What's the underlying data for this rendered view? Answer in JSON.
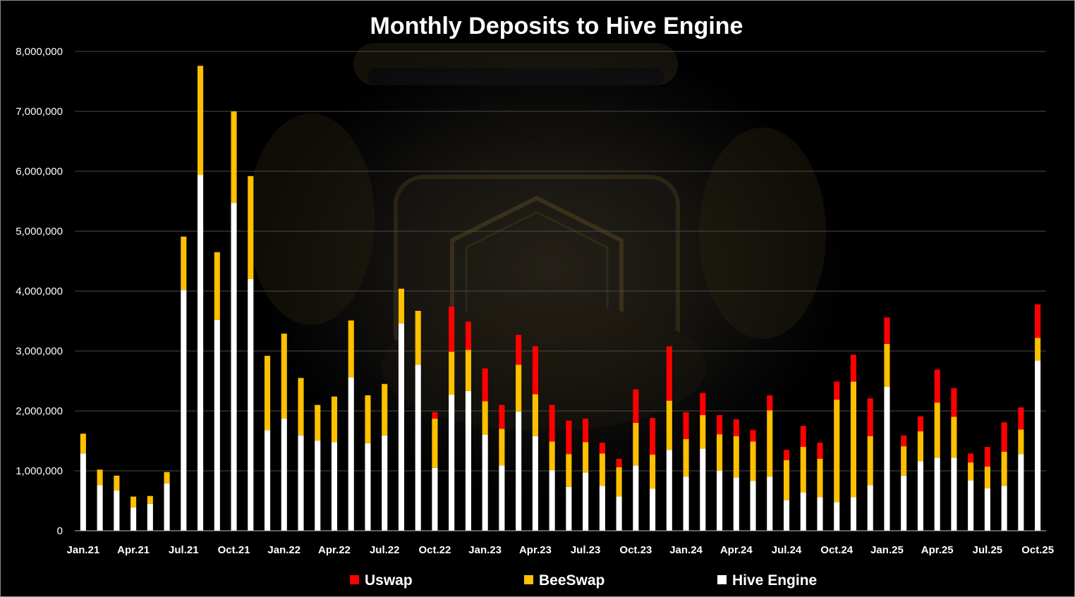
{
  "chart_data": {
    "type": "bar",
    "stacked": true,
    "title": "Monthly Deposits to Hive Engine",
    "xlabel": "",
    "ylabel": "",
    "ylim": [
      0,
      8000000
    ],
    "yticks": [
      0,
      1000000,
      2000000,
      3000000,
      4000000,
      5000000,
      6000000,
      7000000,
      8000000
    ],
    "ytick_labels": [
      "0",
      "1,000,000",
      "2,000,000",
      "3,000,000",
      "4,000,000",
      "5,000,000",
      "6,000,000",
      "7,000,000",
      "8,000,000"
    ],
    "grid": true,
    "legend_position": "bottom",
    "categories": [
      "Jan.21",
      "Feb.21",
      "Mar.21",
      "Apr.21",
      "May.21",
      "Jun.21",
      "Jul.21",
      "Aug.21",
      "Sep.21",
      "Oct.21",
      "Nov.21",
      "Dec.21",
      "Jan.22",
      "Feb.22",
      "Mar.22",
      "Apr.22",
      "May.22",
      "Jun.22",
      "Jul.22",
      "Aug.22",
      "Sep.22",
      "Oct.22",
      "Nov.22",
      "Dec.22",
      "Jan.23",
      "Feb.23",
      "Mar.23",
      "Apr.23",
      "May.23",
      "Jun.23",
      "Jul.23",
      "Aug.23",
      "Sep.23",
      "Oct.23",
      "Nov.23",
      "Dec.23",
      "Jan.24",
      "Feb.24",
      "Mar.24",
      "Apr.24",
      "May.24",
      "Jun.24",
      "Jul.24",
      "Aug.24",
      "Sep.24",
      "Oct.24",
      "Nov.24",
      "Dec.24",
      "Jan.25",
      "Feb.25",
      "Mar.25",
      "Apr.25",
      "May.25",
      "Jun.25",
      "Jul.25",
      "Aug.25",
      "Sep.25",
      "Oct.25"
    ],
    "tick_labels": [
      "Jan.21",
      "",
      "",
      "Apr.21",
      "",
      "",
      "Jul.21",
      "",
      "",
      "Oct.21",
      "",
      "",
      "Jan.22",
      "",
      "",
      "Apr.22",
      "",
      "",
      "Jul.22",
      "",
      "",
      "Oct.22",
      "",
      "",
      "Jan.23",
      "",
      "",
      "Apr.23",
      "",
      "",
      "Jul.23",
      "",
      "",
      "Oct.23",
      "",
      "",
      "Jan.24",
      "",
      "",
      "Apr.24",
      "",
      "",
      "Jul.24",
      "",
      "",
      "Oct.24",
      "",
      "",
      "Jan.25",
      "",
      "",
      "Apr.25",
      "",
      "",
      "Jul.25",
      "",
      "",
      "Oct.25"
    ],
    "series": [
      {
        "name": "Hive Engine",
        "color": "#ffffff",
        "values": [
          1290000,
          760000,
          670000,
          390000,
          450000,
          790000,
          4020000,
          5940000,
          3520000,
          5470000,
          4200000,
          1680000,
          1870000,
          1590000,
          1500000,
          1480000,
          2560000,
          1460000,
          1590000,
          3460000,
          2770000,
          1050000,
          2270000,
          2330000,
          1600000,
          1090000,
          1990000,
          1580000,
          1010000,
          730000,
          970000,
          750000,
          570000,
          1090000,
          700000,
          1350000,
          900000,
          1370000,
          1000000,
          890000,
          830000,
          900000,
          510000,
          640000,
          560000,
          480000,
          560000,
          760000,
          2400000,
          920000,
          1160000,
          1220000,
          1220000,
          840000,
          710000,
          750000,
          1280000,
          2840000
        ]
      },
      {
        "name": "BeeSwap",
        "color": "#ffc000",
        "values": [
          330000,
          260000,
          250000,
          180000,
          130000,
          190000,
          890000,
          1820000,
          1130000,
          1530000,
          1720000,
          1240000,
          1420000,
          960000,
          600000,
          760000,
          950000,
          800000,
          860000,
          580000,
          900000,
          820000,
          720000,
          690000,
          560000,
          610000,
          780000,
          700000,
          480000,
          550000,
          510000,
          540000,
          490000,
          710000,
          570000,
          820000,
          630000,
          560000,
          610000,
          690000,
          660000,
          1110000,
          670000,
          760000,
          640000,
          1710000,
          1930000,
          820000,
          720000,
          490000,
          500000,
          920000,
          680000,
          300000,
          360000,
          570000,
          410000,
          380000
        ]
      },
      {
        "name": "Uswap",
        "color": "#ff0000",
        "values": [
          0,
          0,
          0,
          0,
          0,
          0,
          0,
          0,
          0,
          0,
          0,
          0,
          0,
          0,
          0,
          0,
          0,
          0,
          0,
          0,
          0,
          110000,
          750000,
          470000,
          550000,
          400000,
          500000,
          800000,
          610000,
          560000,
          390000,
          180000,
          140000,
          560000,
          610000,
          910000,
          450000,
          370000,
          320000,
          280000,
          190000,
          250000,
          170000,
          350000,
          270000,
          300000,
          450000,
          630000,
          440000,
          180000,
          250000,
          550000,
          480000,
          150000,
          330000,
          490000,
          370000,
          560000
        ]
      }
    ]
  },
  "legend": {
    "items": [
      {
        "label": "Uswap",
        "color": "#ff0000"
      },
      {
        "label": "BeeSwap",
        "color": "#ffc000"
      },
      {
        "label": "Hive Engine",
        "color": "#ffffff"
      }
    ]
  }
}
